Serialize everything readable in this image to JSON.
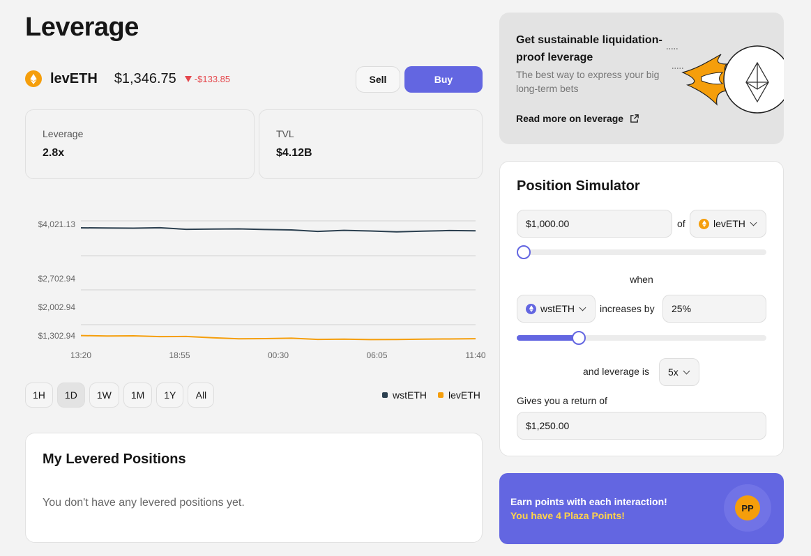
{
  "page": {
    "title": "Leverage"
  },
  "token": {
    "name": "levETH",
    "price": "$1,346.75",
    "change": "-$133.85",
    "icon": "eth-icon",
    "icon_color": "#f59e0b"
  },
  "actions": {
    "sell_label": "Sell",
    "buy_label": "Buy",
    "accent": "#6366e1"
  },
  "stats": [
    {
      "label": "Leverage",
      "value": "2.8x"
    },
    {
      "label": "TVL",
      "value": "$4.12B"
    }
  ],
  "time_ranges": [
    {
      "label": "1H",
      "active": false
    },
    {
      "label": "1D",
      "active": true
    },
    {
      "label": "1W",
      "active": false
    },
    {
      "label": "1M",
      "active": false
    },
    {
      "label": "1Y",
      "active": false
    },
    {
      "label": "All",
      "active": false
    }
  ],
  "chart_data": {
    "type": "line",
    "x_ticks": [
      "13:20",
      "18:55",
      "00:30",
      "06:05",
      "11:40"
    ],
    "y_ticks": [
      "$4,021.13",
      "$2,702.94",
      "$2,002.94",
      "$1,302.94"
    ],
    "grid": true,
    "legend_placement": "bottom-right",
    "series": [
      {
        "name": "wstETH",
        "color": "#2b3f4f",
        "values": [
          4021,
          4018,
          4012,
          4022,
          3985,
          3990,
          3996,
          3980,
          3970,
          3935,
          3960,
          3945,
          3925,
          3940,
          3955,
          3950
        ]
      },
      {
        "name": "levETH",
        "color": "#f59e0b",
        "values": [
          1395,
          1382,
          1388,
          1370,
          1372,
          1340,
          1315,
          1320,
          1330,
          1302,
          1306,
          1296,
          1300,
          1308,
          1312,
          1318
        ]
      }
    ]
  },
  "positions": {
    "title": "My Levered Positions",
    "empty_text": "You don't have any levered positions yet."
  },
  "promo": {
    "title": "Get sustainable liquidation-proof leverage",
    "subtitle": "The best way to express your big long-term bets",
    "link_label": "Read more on leverage",
    "link_icon": "external-link-icon",
    "art_icon": "eth-diamond-icon"
  },
  "simulator": {
    "title": "Position Simulator",
    "amount": "$1,000.00",
    "of_label": "of",
    "amount_token": "levETH",
    "amount_slider": 0,
    "when_label": "when",
    "underlying_token": "wstETH",
    "underlying_color": "#6366e1",
    "increases_label": "increases by",
    "increase_value": "25%",
    "increase_slider": 0.22,
    "leverage_label": "and leverage is",
    "leverage_value": "5x",
    "return_label": "Gives you a return of",
    "return_value": "$1,250.00"
  },
  "points": {
    "title": "Earn points with each interaction!",
    "subtitle": "You have 4 Plaza Points!",
    "badge": "PP",
    "bg_color": "#6366e1",
    "subtitle_color": "#ffd34a"
  }
}
